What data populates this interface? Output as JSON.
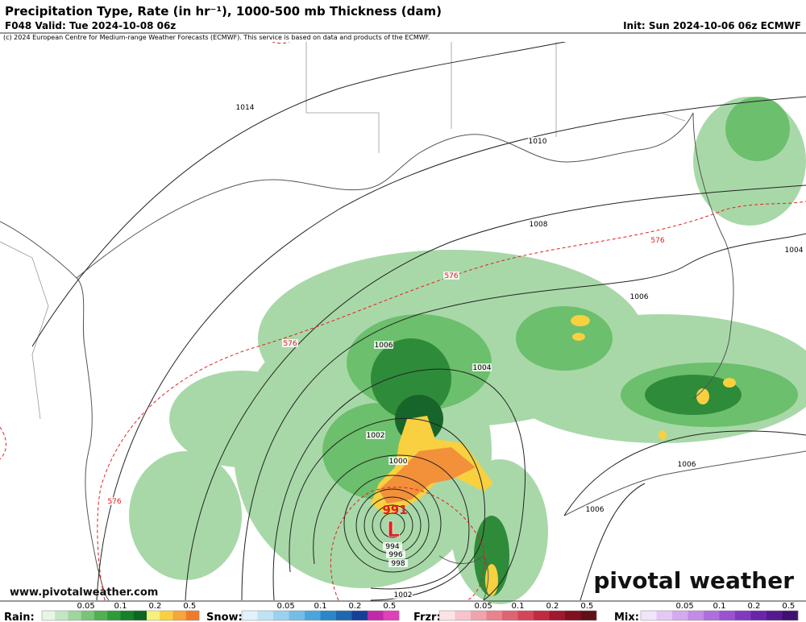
{
  "header": {
    "title": "Precipitation Type, Rate (in hr⁻¹), 1000-500 mb Thickness (dam)",
    "valid": "F048 Valid: Tue 2024-10-08 06z",
    "init": "Init: Sun 2024-10-06 06z ECMWF",
    "copyright": "(c) 2024 European Centre for Medium-range Weather Forecasts (ECMWF). This service is based on data and products of the ECMWF."
  },
  "map": {
    "isobar_labels": [
      "1014",
      "1010",
      "1008",
      "1006",
      "1004",
      "1006",
      "1004",
      "1002",
      "1000",
      "994",
      "996",
      "998",
      "1002",
      "1006",
      "1006"
    ],
    "thickness_labels": [
      "576",
      "576",
      "576",
      "576"
    ],
    "low": {
      "pressure": "991",
      "symbol": "L"
    }
  },
  "footer": {
    "url": "www.pivotalweather.com",
    "brand": "pivotal weather"
  },
  "legend": [
    {
      "label": "Rain:",
      "ticks": [
        0.05,
        0.1,
        0.2,
        0.5
      ],
      "colors": [
        "#e6f5e6",
        "#c2e6c2",
        "#9ed69e",
        "#78c478",
        "#52b052",
        "#2e9a3a",
        "#17802a",
        "#0d6620",
        "#f7f07a",
        "#f8d040",
        "#f6a63a",
        "#f07a2a"
      ]
    },
    {
      "label": "Snow:",
      "ticks": [
        0.05,
        0.1,
        0.2,
        0.5
      ],
      "colors": [
        "#e0f2fb",
        "#bfe3f5",
        "#9bd1ee",
        "#74bde6",
        "#4aa5dc",
        "#2a86c8",
        "#1f66b0",
        "#173f98",
        "#c02aa8",
        "#e040b8"
      ]
    },
    {
      "label": "Frzr:",
      "ticks": [
        0.05,
        0.1,
        0.2,
        0.5
      ],
      "colors": [
        "#fbe3e6",
        "#f6c4ca",
        "#efa3ad",
        "#e8838f",
        "#df6473",
        "#d44558",
        "#c02b40",
        "#a0182e",
        "#801020",
        "#601018"
      ]
    },
    {
      "label": "Mix:",
      "ticks": [
        0.05,
        0.1,
        0.2,
        0.5
      ],
      "colors": [
        "#f2e4fa",
        "#e4c8f4",
        "#d4aaee",
        "#c28ce6",
        "#ae6edc",
        "#9a52d0",
        "#8238bf",
        "#6a24a8",
        "#541890",
        "#401070"
      ]
    }
  ]
}
